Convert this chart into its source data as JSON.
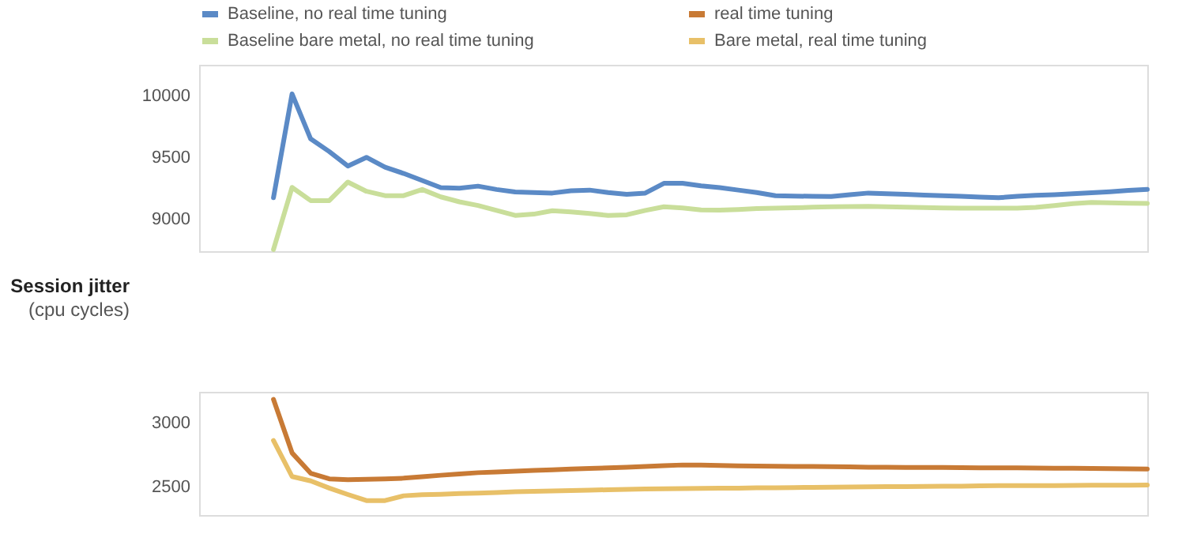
{
  "chart_data": [
    {
      "type": "line",
      "ylabel": "Session jitter\n(cpu cycles)",
      "legend": "top",
      "tick_labels": "y",
      "grid": false,
      "line_style": "solid",
      "marker": "none",
      "categories": [
        null,
        null,
        null,
        null,
        null,
        null,
        null,
        null,
        null,
        null,
        null,
        null,
        null,
        null,
        null,
        null,
        null,
        null,
        null,
        null,
        null,
        null,
        null,
        null,
        null,
        null,
        null,
        null,
        null,
        null,
        null,
        null,
        null,
        null,
        null,
        null,
        null,
        null,
        null,
        null,
        null,
        null,
        null,
        null,
        null,
        null,
        null,
        null,
        null,
        null,
        null,
        null
      ],
      "ylim": [
        8740,
        10250
      ],
      "yticks": [
        9000,
        9500,
        10000
      ],
      "series": [
        {
          "name": "Baseline, no real time tuning",
          "color": "#5b8ac6",
          "values": [
            null,
            null,
            null,
            null,
            9173,
            10014,
            9650,
            9547,
            9430,
            9500,
            9420,
            9370,
            9313,
            9255,
            9250,
            9267,
            9240,
            9220,
            9215,
            9211,
            9230,
            9235,
            9215,
            9200,
            9211,
            9290,
            9290,
            9270,
            9255,
            9235,
            9215,
            9190,
            9186,
            9185,
            9183,
            9198,
            9211,
            9205,
            9200,
            9195,
            9190,
            9185,
            9178,
            9173,
            9185,
            9192,
            9198,
            9205,
            9213,
            9222,
            9232,
            9240
          ]
        },
        {
          "name": "Baseline bare metal, no real time tuning",
          "color": "#c9de9a",
          "values": [
            null,
            null,
            null,
            null,
            8753,
            9257,
            9150,
            9150,
            9300,
            9225,
            9190,
            9190,
            9240,
            9180,
            9140,
            9110,
            9070,
            9030,
            9040,
            9068,
            9058,
            9045,
            9030,
            9035,
            9070,
            9100,
            9090,
            9075,
            9072,
            9078,
            9085,
            9089,
            9092,
            9096,
            9100,
            9102,
            9103,
            9100,
            9097,
            9094,
            9091,
            9089,
            9089,
            9089,
            9089,
            9095,
            9110,
            9125,
            9135,
            9132,
            9128,
            9127
          ]
        }
      ]
    },
    {
      "type": "line",
      "legend": "top",
      "tick_labels": "y",
      "grid": false,
      "line_style": "solid",
      "marker": "none",
      "categories": [
        null,
        null,
        null,
        null,
        null,
        null,
        null,
        null,
        null,
        null,
        null,
        null,
        null,
        null,
        null,
        null,
        null,
        null,
        null,
        null,
        null,
        null,
        null,
        null,
        null,
        null,
        null,
        null,
        null,
        null,
        null,
        null,
        null,
        null,
        null,
        null,
        null,
        null,
        null,
        null,
        null,
        null,
        null,
        null,
        null,
        null,
        null,
        null,
        null,
        null,
        null,
        null
      ],
      "ylim": [
        2280,
        3240
      ],
      "yticks": [
        2500,
        3000
      ],
      "series": [
        {
          "name": "real time tuning",
          "color": "#c87a35",
          "values": [
            null,
            null,
            null,
            null,
            3181,
            2764,
            2606,
            2562,
            2556,
            2559,
            2562,
            2567,
            2578,
            2590,
            2600,
            2610,
            2616,
            2622,
            2628,
            2633,
            2638,
            2643,
            2648,
            2653,
            2658,
            2664,
            2670,
            2669,
            2666,
            2663,
            2661,
            2660,
            2659,
            2658,
            2657,
            2655,
            2653,
            2652,
            2651,
            2650,
            2650,
            2649,
            2648,
            2648,
            2647,
            2646,
            2645,
            2644,
            2643,
            2642,
            2640,
            2639
          ]
        },
        {
          "name": "Bare metal, real time tuning",
          "color": "#e8c068",
          "values": [
            null,
            null,
            null,
            null,
            2861,
            2580,
            2546,
            2490,
            2440,
            2393,
            2393,
            2430,
            2438,
            2442,
            2447,
            2451,
            2455,
            2461,
            2465,
            2468,
            2471,
            2474,
            2477,
            2480,
            2483,
            2485,
            2486,
            2488,
            2489,
            2490,
            2492,
            2493,
            2494,
            2496,
            2497,
            2498,
            2500,
            2501,
            2502,
            2503,
            2504,
            2505,
            2507,
            2509,
            2509,
            2510,
            2510,
            2511,
            2512,
            2512,
            2513,
            2514
          ]
        }
      ]
    }
  ]
}
